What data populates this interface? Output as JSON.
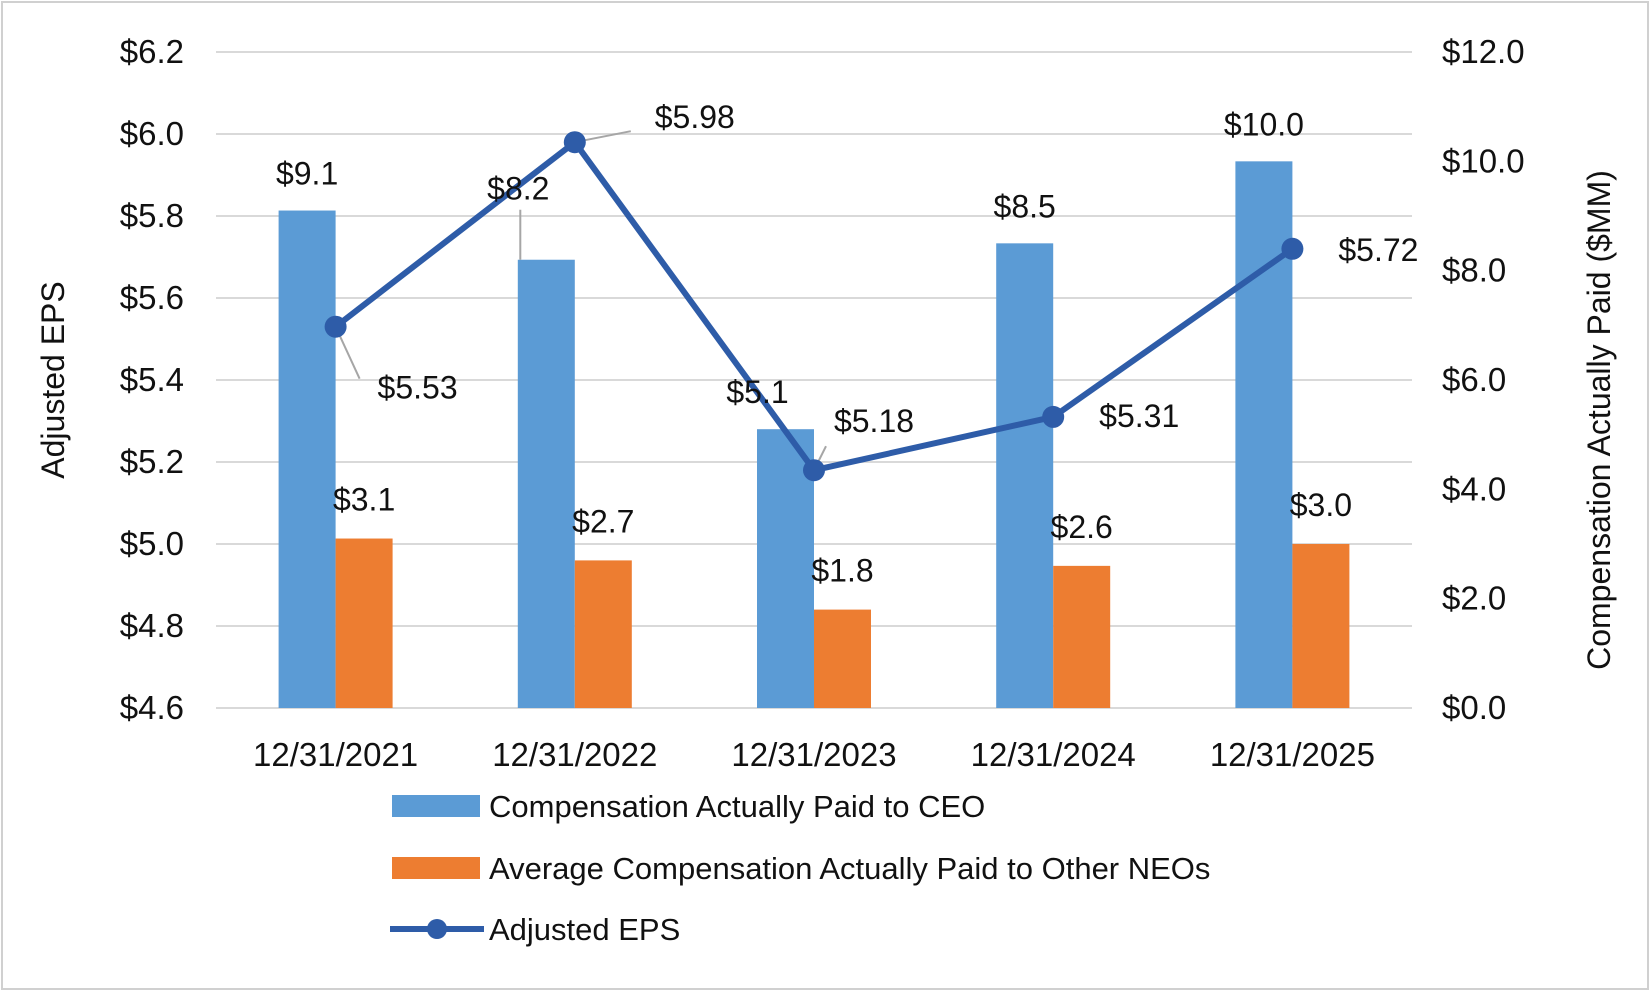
{
  "chart_data": {
    "type": "bar",
    "title": "",
    "categories": [
      "12/31/2021",
      "12/31/2022",
      "12/31/2023",
      "12/31/2024",
      "12/31/2025"
    ],
    "series": [
      {
        "name": "Compensation Actually Paid to CEO",
        "type": "bar",
        "axis": "right",
        "color": "#5b9bd5",
        "values": [
          9.1,
          8.2,
          5.1,
          8.5,
          10.0
        ],
        "labels": [
          "$9.1",
          "$8.2",
          "$5.1",
          "$8.5",
          "$10.0"
        ]
      },
      {
        "name": "Average Compensation Actually Paid to Other NEOs",
        "type": "bar",
        "axis": "right",
        "color": "#ed7d31",
        "values": [
          3.1,
          2.7,
          1.8,
          2.6,
          3.0
        ],
        "labels": [
          "$3.1",
          "$2.7",
          "$1.8",
          "$2.6",
          "$3.0"
        ]
      },
      {
        "name": "Adjusted EPS",
        "type": "line",
        "axis": "left",
        "color": "#2e5ca8",
        "values": [
          5.53,
          5.98,
          5.18,
          5.31,
          5.72
        ],
        "labels": [
          "$5.53",
          "$5.98",
          "$5.18",
          "$5.31",
          "$5.72"
        ]
      }
    ],
    "left_axis": {
      "label": "Adjusted EPS",
      "min": 4.6,
      "max": 6.2,
      "ticks": [
        "$4.6",
        "$4.8",
        "$5.0",
        "$5.2",
        "$5.4",
        "$5.6",
        "$5.8",
        "$6.0",
        "$6.2"
      ]
    },
    "right_axis": {
      "label": "Compensation Actually Paid ($MM)",
      "min": 0,
      "max": 12,
      "ticks": [
        "$0.0",
        "$2.0",
        "$4.0",
        "$6.0",
        "$8.0",
        "$10.0",
        "$12.0"
      ]
    },
    "grid": true,
    "legend_position": "bottom"
  }
}
